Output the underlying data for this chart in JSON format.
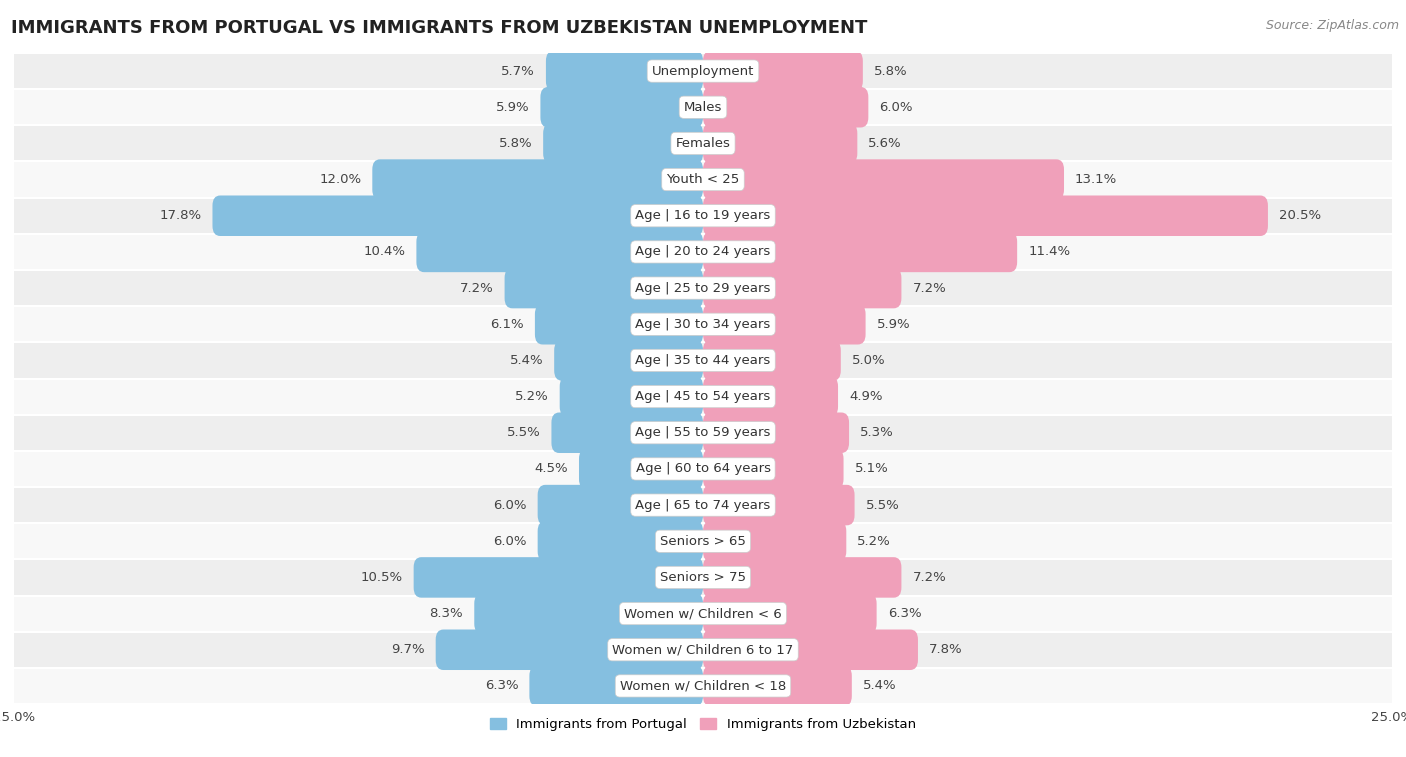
{
  "title": "IMMIGRANTS FROM PORTUGAL VS IMMIGRANTS FROM UZBEKISTAN UNEMPLOYMENT",
  "source": "Source: ZipAtlas.com",
  "categories": [
    "Unemployment",
    "Males",
    "Females",
    "Youth < 25",
    "Age | 16 to 19 years",
    "Age | 20 to 24 years",
    "Age | 25 to 29 years",
    "Age | 30 to 34 years",
    "Age | 35 to 44 years",
    "Age | 45 to 54 years",
    "Age | 55 to 59 years",
    "Age | 60 to 64 years",
    "Age | 65 to 74 years",
    "Seniors > 65",
    "Seniors > 75",
    "Women w/ Children < 6",
    "Women w/ Children 6 to 17",
    "Women w/ Children < 18"
  ],
  "portugal_values": [
    5.7,
    5.9,
    5.8,
    12.0,
    17.8,
    10.4,
    7.2,
    6.1,
    5.4,
    5.2,
    5.5,
    4.5,
    6.0,
    6.0,
    10.5,
    8.3,
    9.7,
    6.3
  ],
  "uzbekistan_values": [
    5.8,
    6.0,
    5.6,
    13.1,
    20.5,
    11.4,
    7.2,
    5.9,
    5.0,
    4.9,
    5.3,
    5.1,
    5.5,
    5.2,
    7.2,
    6.3,
    7.8,
    5.4
  ],
  "portugal_color": "#85bfe0",
  "uzbekistan_color": "#f0a0ba",
  "background_row_odd": "#eeeeee",
  "background_row_even": "#f8f8f8",
  "xlim": 25.0,
  "legend_portugal": "Immigrants from Portugal",
  "legend_uzbekistan": "Immigrants from Uzbekistan",
  "title_fontsize": 13,
  "label_fontsize": 9.5,
  "value_fontsize": 9.5,
  "source_fontsize": 9
}
